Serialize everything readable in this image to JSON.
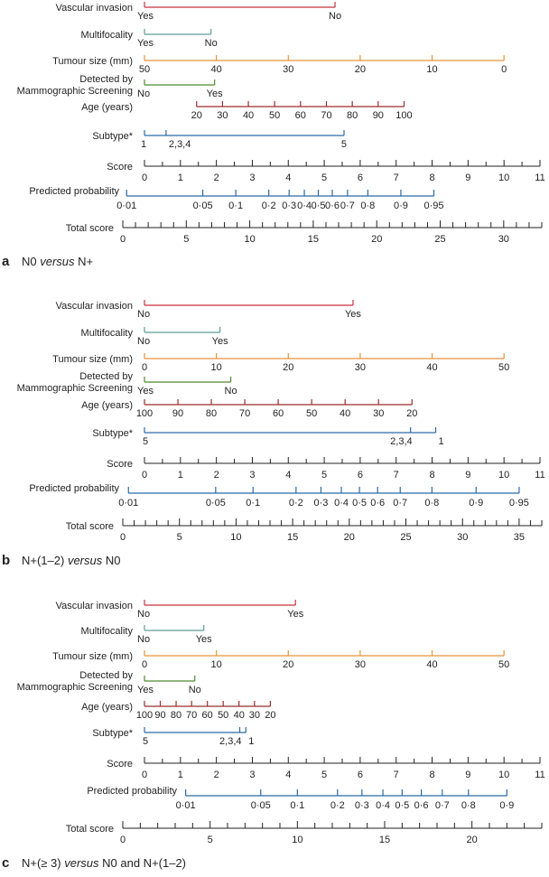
{
  "colors": {
    "vascular": "#c8323c",
    "multifocality": "#5f9e98",
    "tumour": "#e8923a",
    "detected": "#4f8a2e",
    "age": "#9b2d2d",
    "subtype": "#2c6aa8",
    "axis": "#222222",
    "probability": "#2c6aa8"
  },
  "chart_data": [
    {
      "type": "nomogram",
      "panel_letter": "a",
      "title": {
        "pre": "N0 ",
        "ital": "versus",
        "post": " N+"
      },
      "score_axis": {
        "min": 0,
        "max": 11,
        "ticks": [
          "0",
          "1",
          "2",
          "3",
          "4",
          "5",
          "6",
          "7",
          "8",
          "9",
          "10",
          "11"
        ]
      },
      "total_axis": {
        "min": 0,
        "max": 33,
        "labels": [
          "0",
          "5",
          "10",
          "15",
          "20",
          "25",
          "30"
        ]
      },
      "variables": [
        {
          "key": "vascular",
          "label": "Vascular invasion",
          "color_key": "vascular",
          "points": [
            {
              "label": "Yes",
              "score": 0
            },
            {
              "label": "No",
              "score": 5.3
            }
          ]
        },
        {
          "key": "multifocality",
          "label": "Multifocality",
          "color_key": "multifocality",
          "points": [
            {
              "label": "Yes",
              "score": 0
            },
            {
              "label": "No",
              "score": 1.85
            }
          ]
        },
        {
          "key": "tumour",
          "label": "Tumour size (mm)",
          "color_key": "tumour",
          "points": [
            {
              "label": "50",
              "score": 0
            },
            {
              "label": "40",
              "score": 2
            },
            {
              "label": "30",
              "score": 4
            },
            {
              "label": "20",
              "score": 6
            },
            {
              "label": "10",
              "score": 8
            },
            {
              "label": "0",
              "score": 10
            }
          ]
        },
        {
          "key": "detected",
          "label": [
            "Detected by",
            "Mammographic Screening"
          ],
          "color_key": "detected",
          "points": [
            {
              "label": "No",
              "score": 0
            },
            {
              "label": "Yes",
              "score": 1.95
            }
          ]
        },
        {
          "key": "age",
          "label": "Age (years)",
          "color_key": "age",
          "points": [
            {
              "label": "20",
              "score": 1.45
            },
            {
              "label": "30",
              "score": 2.17
            },
            {
              "label": "40",
              "score": 2.89
            },
            {
              "label": "50",
              "score": 3.62
            },
            {
              "label": "60",
              "score": 4.34
            },
            {
              "label": "70",
              "score": 5.06
            },
            {
              "label": "80",
              "score": 5.78
            },
            {
              "label": "90",
              "score": 6.5
            },
            {
              "label": "100",
              "score": 7.22
            }
          ]
        },
        {
          "key": "subtype",
          "label": "Subtype*",
          "color_key": "subtype",
          "points": [
            {
              "label": "1",
              "score": 0
            },
            {
              "label": "2,3,4",
              "score": 0.6
            },
            {
              "label": "5",
              "score": 5.55
            }
          ]
        }
      ],
      "probability": [
        {
          "label": "0·01",
          "total": 0.3
        },
        {
          "label": "0·05",
          "total": 6.3
        },
        {
          "label": "0·1",
          "total": 8.9
        },
        {
          "label": "0·2",
          "total": 11.5
        },
        {
          "label": "0·3",
          "total": 13.1
        },
        {
          "label": "0·4",
          "total": 14.3
        },
        {
          "label": "0·5",
          "total": 15.4
        },
        {
          "label": "0·6",
          "total": 16.5
        },
        {
          "label": "0·7",
          "total": 17.7
        },
        {
          "label": "0·8",
          "total": 19.3
        },
        {
          "label": "0·9",
          "total": 21.9
        },
        {
          "label": "0·95",
          "total": 24.5
        }
      ]
    },
    {
      "type": "nomogram",
      "panel_letter": "b",
      "title": {
        "pre": "N+(1–2) ",
        "ital": "versus",
        "post": " N0"
      },
      "score_axis": {
        "min": 0,
        "max": 11,
        "ticks": [
          "0",
          "1",
          "2",
          "3",
          "4",
          "5",
          "6",
          "7",
          "8",
          "9",
          "10",
          "11"
        ]
      },
      "total_axis": {
        "min": 0,
        "max": 37,
        "labels": [
          "0",
          "5",
          "10",
          "15",
          "20",
          "25",
          "30",
          "35"
        ]
      },
      "variables": [
        {
          "key": "vascular",
          "label": "Vascular invasion",
          "color_key": "vascular",
          "points": [
            {
              "label": "No",
              "score": 0
            },
            {
              "label": "Yes",
              "score": 5.8
            }
          ]
        },
        {
          "key": "multifocality",
          "label": "Multifocality",
          "color_key": "multifocality",
          "points": [
            {
              "label": "No",
              "score": 0
            },
            {
              "label": "Yes",
              "score": 2.1
            }
          ]
        },
        {
          "key": "tumour",
          "label": "Tumour size (mm)",
          "color_key": "tumour",
          "points": [
            {
              "label": "0",
              "score": 0
            },
            {
              "label": "10",
              "score": 2
            },
            {
              "label": "20",
              "score": 4
            },
            {
              "label": "30",
              "score": 6
            },
            {
              "label": "40",
              "score": 8
            },
            {
              "label": "50",
              "score": 10
            }
          ]
        },
        {
          "key": "detected",
          "label": [
            "Detected by",
            "Mammographic Screening"
          ],
          "color_key": "detected",
          "points": [
            {
              "label": "Yes",
              "score": 0
            },
            {
              "label": "No",
              "score": 2.4
            }
          ]
        },
        {
          "key": "age",
          "label": "Age (years)",
          "color_key": "age",
          "points": [
            {
              "label": "100",
              "score": 0
            },
            {
              "label": "90",
              "score": 0.93
            },
            {
              "label": "80",
              "score": 1.86
            },
            {
              "label": "70",
              "score": 2.79
            },
            {
              "label": "60",
              "score": 3.72
            },
            {
              "label": "50",
              "score": 4.65
            },
            {
              "label": "40",
              "score": 5.58
            },
            {
              "label": "30",
              "score": 6.51
            },
            {
              "label": "20",
              "score": 7.44
            }
          ]
        },
        {
          "key": "subtype",
          "label": "Subtype*",
          "color_key": "subtype",
          "points": [
            {
              "label": "5",
              "score": 0
            },
            {
              "label": "2,3,4",
              "score": 7.4
            },
            {
              "label": "1",
              "score": 8.1
            }
          ]
        }
      ],
      "probability": [
        {
          "label": "0·01",
          "total": 0.5
        },
        {
          "label": "0·05",
          "total": 8.2
        },
        {
          "label": "0·1",
          "total": 11.5
        },
        {
          "label": "0·2",
          "total": 15.3
        },
        {
          "label": "0·3",
          "total": 17.5
        },
        {
          "label": "0·4",
          "total": 19.3
        },
        {
          "label": "0·5",
          "total": 20.9
        },
        {
          "label": "0·6",
          "total": 22.5
        },
        {
          "label": "0·7",
          "total": 24.5
        },
        {
          "label": "0·8",
          "total": 27.3
        },
        {
          "label": "0·9",
          "total": 31.2
        },
        {
          "label": "0·95",
          "total": 35.0
        }
      ]
    },
    {
      "type": "nomogram",
      "panel_letter": "c",
      "title": {
        "pre": "N+(≥ 3) ",
        "ital": "versus",
        "post": " N0 and N+(1–2)"
      },
      "score_axis": {
        "min": 0,
        "max": 11,
        "ticks": [
          "0",
          "1",
          "2",
          "3",
          "4",
          "5",
          "6",
          "7",
          "8",
          "9",
          "10",
          "11"
        ]
      },
      "total_axis": {
        "min": 0,
        "max": 24,
        "labels": [
          "0",
          "5",
          "10",
          "15",
          "20"
        ]
      },
      "variables": [
        {
          "key": "vascular",
          "label": "Vascular invasion",
          "color_key": "vascular",
          "points": [
            {
              "label": "No",
              "score": 0
            },
            {
              "label": "Yes",
              "score": 4.2
            }
          ]
        },
        {
          "key": "multifocality",
          "label": "Multifocality",
          "color_key": "multifocality",
          "points": [
            {
              "label": "No",
              "score": 0
            },
            {
              "label": "Yes",
              "score": 1.65
            }
          ]
        },
        {
          "key": "tumour",
          "label": "Tumour size (mm)",
          "color_key": "tumour",
          "points": [
            {
              "label": "0",
              "score": 0
            },
            {
              "label": "10",
              "score": 2
            },
            {
              "label": "20",
              "score": 4
            },
            {
              "label": "30",
              "score": 6
            },
            {
              "label": "40",
              "score": 8
            },
            {
              "label": "50",
              "score": 10
            }
          ]
        },
        {
          "key": "detected",
          "label": [
            "Detected by",
            "Mammographic Screening"
          ],
          "color_key": "detected",
          "points": [
            {
              "label": "Yes",
              "score": 0
            },
            {
              "label": "No",
              "score": 1.4
            }
          ]
        },
        {
          "key": "age",
          "label": "Age (years)",
          "color_key": "age",
          "points": [
            {
              "label": "100",
              "score": 0
            },
            {
              "label": "90",
              "score": 0.44
            },
            {
              "label": "80",
              "score": 0.88
            },
            {
              "label": "70",
              "score": 1.31
            },
            {
              "label": "60",
              "score": 1.75
            },
            {
              "label": "50",
              "score": 2.19
            },
            {
              "label": "40",
              "score": 2.63
            },
            {
              "label": "30",
              "score": 3.06
            },
            {
              "label": "20",
              "score": 3.5
            }
          ]
        },
        {
          "key": "subtype",
          "label": "Subtype*",
          "color_key": "subtype",
          "points": [
            {
              "label": "5",
              "score": 0
            },
            {
              "label": "2,3,4",
              "score": 2.65
            },
            {
              "label": "1",
              "score": 2.82
            }
          ]
        }
      ],
      "probability": [
        {
          "label": "0·01",
          "total": 3.6
        },
        {
          "label": "0·05",
          "total": 7.9
        },
        {
          "label": "0·1",
          "total": 10.0
        },
        {
          "label": "0·2",
          "total": 12.3
        },
        {
          "label": "0·3",
          "total": 13.7
        },
        {
          "label": "0·4",
          "total": 14.9
        },
        {
          "label": "0·5",
          "total": 16.0
        },
        {
          "label": "0·6",
          "total": 17.1
        },
        {
          "label": "0·7",
          "total": 18.3
        },
        {
          "label": "0·8",
          "total": 19.8
        },
        {
          "label": "0·9",
          "total": 22.0
        }
      ]
    }
  ]
}
